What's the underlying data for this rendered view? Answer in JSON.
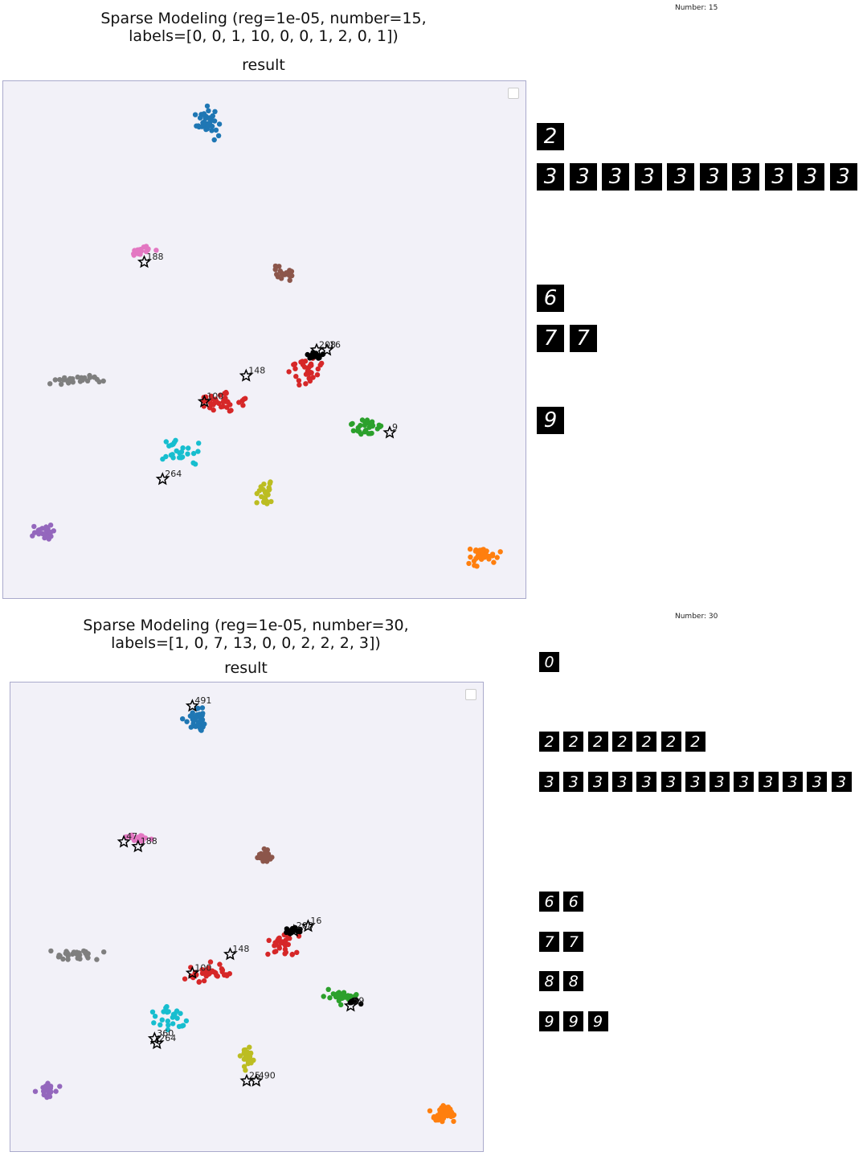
{
  "panels": [
    {
      "title": "Sparse Modeling (reg=1e-05, number=15,\nlabels=[0, 0, 1, 10, 0, 0, 1, 2, 0, 1])",
      "subtitle": "result",
      "number_label": "Number: 15",
      "digit_rows": [
        {
          "digit": "2",
          "count": 1
        },
        {
          "digit": "3",
          "count": 10
        },
        {
          "digit": "6",
          "count": 1
        },
        {
          "digit": "7",
          "count": 2
        },
        {
          "digit": "9",
          "count": 1
        }
      ],
      "chart_data": {
        "type": "scatter",
        "title": "Sparse Modeling (reg=1e-05, number=15, labels=[0, 0, 1, 10, 0, 0, 1, 2, 0, 1])",
        "subtitle": "result",
        "grid": false,
        "legend": "top-right (empty)",
        "clusters": [
          {
            "color": "#1f77b4",
            "cx": 0.395,
            "cy": 0.08,
            "n": 40,
            "rx": 0.035,
            "ry": 0.04
          },
          {
            "color": "#ff7f0e",
            "cx": 0.92,
            "cy": 0.92,
            "n": 35,
            "rx": 0.04,
            "ry": 0.025
          },
          {
            "color": "#2ca02c",
            "cx": 0.7,
            "cy": 0.67,
            "n": 30,
            "rx": 0.05,
            "ry": 0.02
          },
          {
            "color": "#d62728",
            "cx": 0.58,
            "cy": 0.56,
            "n": 30,
            "rx": 0.05,
            "ry": 0.04
          },
          {
            "color": "#9467bd",
            "cx": 0.08,
            "cy": 0.87,
            "n": 25,
            "rx": 0.03,
            "ry": 0.02
          },
          {
            "color": "#8c564b",
            "cx": 0.54,
            "cy": 0.37,
            "n": 20,
            "rx": 0.025,
            "ry": 0.02
          },
          {
            "color": "#e377c2",
            "cx": 0.27,
            "cy": 0.33,
            "n": 20,
            "rx": 0.03,
            "ry": 0.015
          },
          {
            "color": "#7f7f7f",
            "cx": 0.14,
            "cy": 0.58,
            "n": 30,
            "rx": 0.07,
            "ry": 0.015
          },
          {
            "color": "#bcbd22",
            "cx": 0.5,
            "cy": 0.8,
            "n": 25,
            "rx": 0.02,
            "ry": 0.04
          },
          {
            "color": "#17becf",
            "cx": 0.34,
            "cy": 0.72,
            "n": 25,
            "rx": 0.05,
            "ry": 0.04
          },
          {
            "color": "#d62728",
            "cx": 0.42,
            "cy": 0.62,
            "n": 40,
            "rx": 0.07,
            "ry": 0.03
          },
          {
            "color": "#000000",
            "cx": 0.6,
            "cy": 0.53,
            "n": 15,
            "rx": 0.02,
            "ry": 0.01
          }
        ],
        "stars": [
          {
            "x": 0.27,
            "y": 0.35,
            "label": "188"
          },
          {
            "x": 0.6,
            "y": 0.52,
            "label": "208"
          },
          {
            "x": 0.62,
            "y": 0.52,
            "label": "16"
          },
          {
            "x": 0.465,
            "y": 0.57,
            "label": "148"
          },
          {
            "x": 0.385,
            "y": 0.62,
            "label": "100"
          },
          {
            "x": 0.74,
            "y": 0.68,
            "label": "9"
          },
          {
            "x": 0.305,
            "y": 0.77,
            "label": "264"
          }
        ]
      }
    },
    {
      "title": "Sparse Modeling (reg=1e-05, number=30,\nlabels=[1, 0, 7, 13, 0, 0, 2, 2, 2, 3])",
      "subtitle": "result",
      "number_label": "Number: 30",
      "digit_rows": [
        {
          "digit": "0",
          "count": 1
        },
        {
          "digit": "2",
          "count": 7
        },
        {
          "digit": "3",
          "count": 13
        },
        {
          "digit": "6",
          "count": 2
        },
        {
          "digit": "7",
          "count": 2
        },
        {
          "digit": "8",
          "count": 2
        },
        {
          "digit": "9",
          "count": 3
        }
      ],
      "chart_data": {
        "type": "scatter",
        "title": "Sparse Modeling (reg=1e-05, number=30, labels=[1, 0, 7, 13, 0, 0, 2, 2, 2, 3])",
        "subtitle": "result",
        "grid": false,
        "legend": "top-right (empty)",
        "clusters": [
          {
            "color": "#1f77b4",
            "cx": 0.395,
            "cy": 0.08,
            "n": 40,
            "rx": 0.035,
            "ry": 0.04
          },
          {
            "color": "#ff7f0e",
            "cx": 0.92,
            "cy": 0.92,
            "n": 35,
            "rx": 0.04,
            "ry": 0.025
          },
          {
            "color": "#2ca02c",
            "cx": 0.7,
            "cy": 0.67,
            "n": 30,
            "rx": 0.05,
            "ry": 0.02
          },
          {
            "color": "#d62728",
            "cx": 0.58,
            "cy": 0.56,
            "n": 30,
            "rx": 0.05,
            "ry": 0.04
          },
          {
            "color": "#9467bd",
            "cx": 0.08,
            "cy": 0.87,
            "n": 25,
            "rx": 0.03,
            "ry": 0.02
          },
          {
            "color": "#8c564b",
            "cx": 0.54,
            "cy": 0.37,
            "n": 20,
            "rx": 0.025,
            "ry": 0.02
          },
          {
            "color": "#e377c2",
            "cx": 0.27,
            "cy": 0.33,
            "n": 20,
            "rx": 0.03,
            "ry": 0.015
          },
          {
            "color": "#7f7f7f",
            "cx": 0.14,
            "cy": 0.58,
            "n": 30,
            "rx": 0.07,
            "ry": 0.015
          },
          {
            "color": "#bcbd22",
            "cx": 0.5,
            "cy": 0.8,
            "n": 25,
            "rx": 0.02,
            "ry": 0.04
          },
          {
            "color": "#17becf",
            "cx": 0.34,
            "cy": 0.72,
            "n": 25,
            "rx": 0.05,
            "ry": 0.04
          },
          {
            "color": "#d62728",
            "cx": 0.42,
            "cy": 0.62,
            "n": 40,
            "rx": 0.07,
            "ry": 0.03
          },
          {
            "color": "#000000",
            "cx": 0.6,
            "cy": 0.53,
            "n": 20,
            "rx": 0.025,
            "ry": 0.012
          },
          {
            "color": "#000000",
            "cx": 0.73,
            "cy": 0.68,
            "n": 10,
            "rx": 0.02,
            "ry": 0.01
          }
        ],
        "stars": [
          {
            "x": 0.385,
            "y": 0.05,
            "label": "491"
          },
          {
            "x": 0.24,
            "y": 0.34,
            "label": "47"
          },
          {
            "x": 0.27,
            "y": 0.35,
            "label": "188"
          },
          {
            "x": 0.6,
            "y": 0.53,
            "label": "208"
          },
          {
            "x": 0.63,
            "y": 0.52,
            "label": "16"
          },
          {
            "x": 0.465,
            "y": 0.58,
            "label": "148"
          },
          {
            "x": 0.385,
            "y": 0.62,
            "label": "100"
          },
          {
            "x": 0.72,
            "y": 0.69,
            "label": "59"
          },
          {
            "x": 0.305,
            "y": 0.76,
            "label": "360"
          },
          {
            "x": 0.31,
            "y": 0.77,
            "label": "264"
          },
          {
            "x": 0.5,
            "y": 0.85,
            "label": "25"
          },
          {
            "x": 0.52,
            "y": 0.85,
            "label": "490"
          }
        ]
      }
    }
  ]
}
